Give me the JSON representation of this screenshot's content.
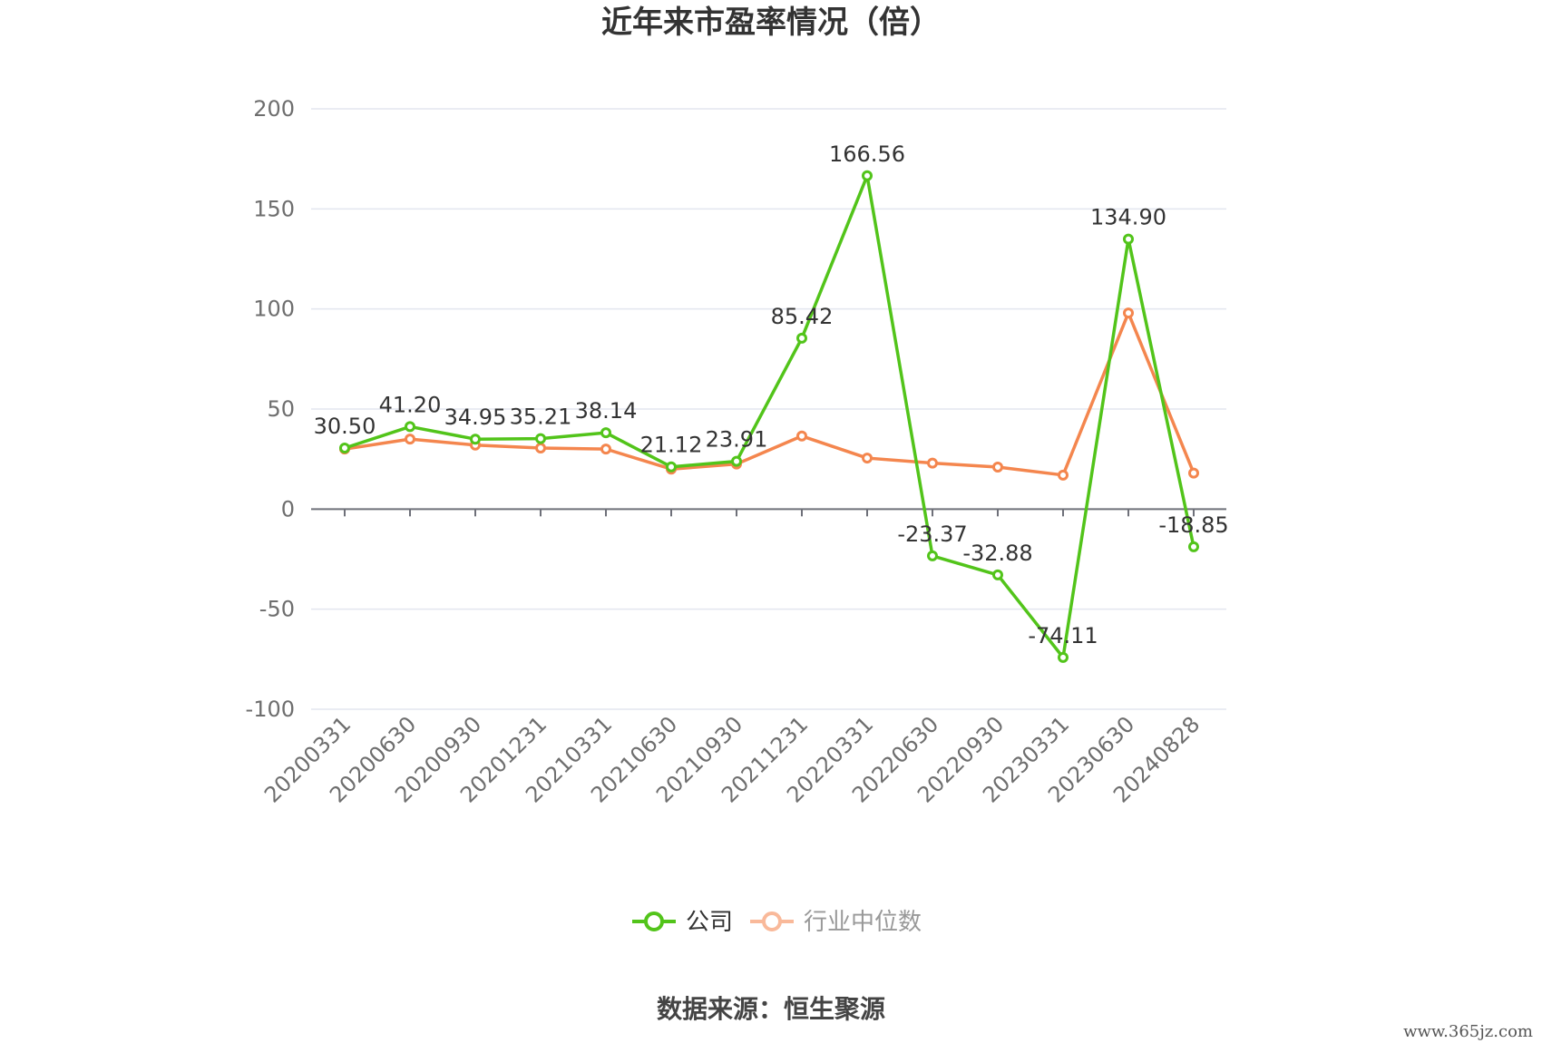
{
  "chart_data": {
    "type": "line",
    "title": "近年来市盈率情况（倍）",
    "categories": [
      "20200331",
      "20200630",
      "20200930",
      "20201231",
      "20210331",
      "20210630",
      "20210930",
      "20211231",
      "20220331",
      "20220630",
      "20220930",
      "20230331",
      "20230630",
      "20240828"
    ],
    "series": [
      {
        "name": "公司",
        "color": "#52c41a",
        "values": [
          30.5,
          41.2,
          34.95,
          35.21,
          38.14,
          21.12,
          23.91,
          85.42,
          166.56,
          -23.37,
          -32.88,
          -74.11,
          134.9,
          -18.85
        ],
        "labels": [
          "30.50",
          "41.20",
          "34.95",
          "35.21",
          "38.14",
          "21.12",
          "23.91",
          "85.42",
          "166.56",
          "-23.37",
          "-32.88",
          "-74.11",
          "134.90",
          "-18.85"
        ]
      },
      {
        "name": "行业中位数",
        "color": "#f4864e",
        "values": [
          30.0,
          35.0,
          32.0,
          30.5,
          30.0,
          20.0,
          22.5,
          36.5,
          25.5,
          23.0,
          21.0,
          17.0,
          98.0,
          18.0
        ]
      }
    ],
    "ylim": [
      -100,
      200
    ],
    "yticks": [
      200,
      150,
      100,
      50,
      0,
      -50,
      -100
    ],
    "grid": true,
    "legend": "bottom-center",
    "source": "数据来源：恒生聚源",
    "watermark": "www.365jz.com"
  }
}
